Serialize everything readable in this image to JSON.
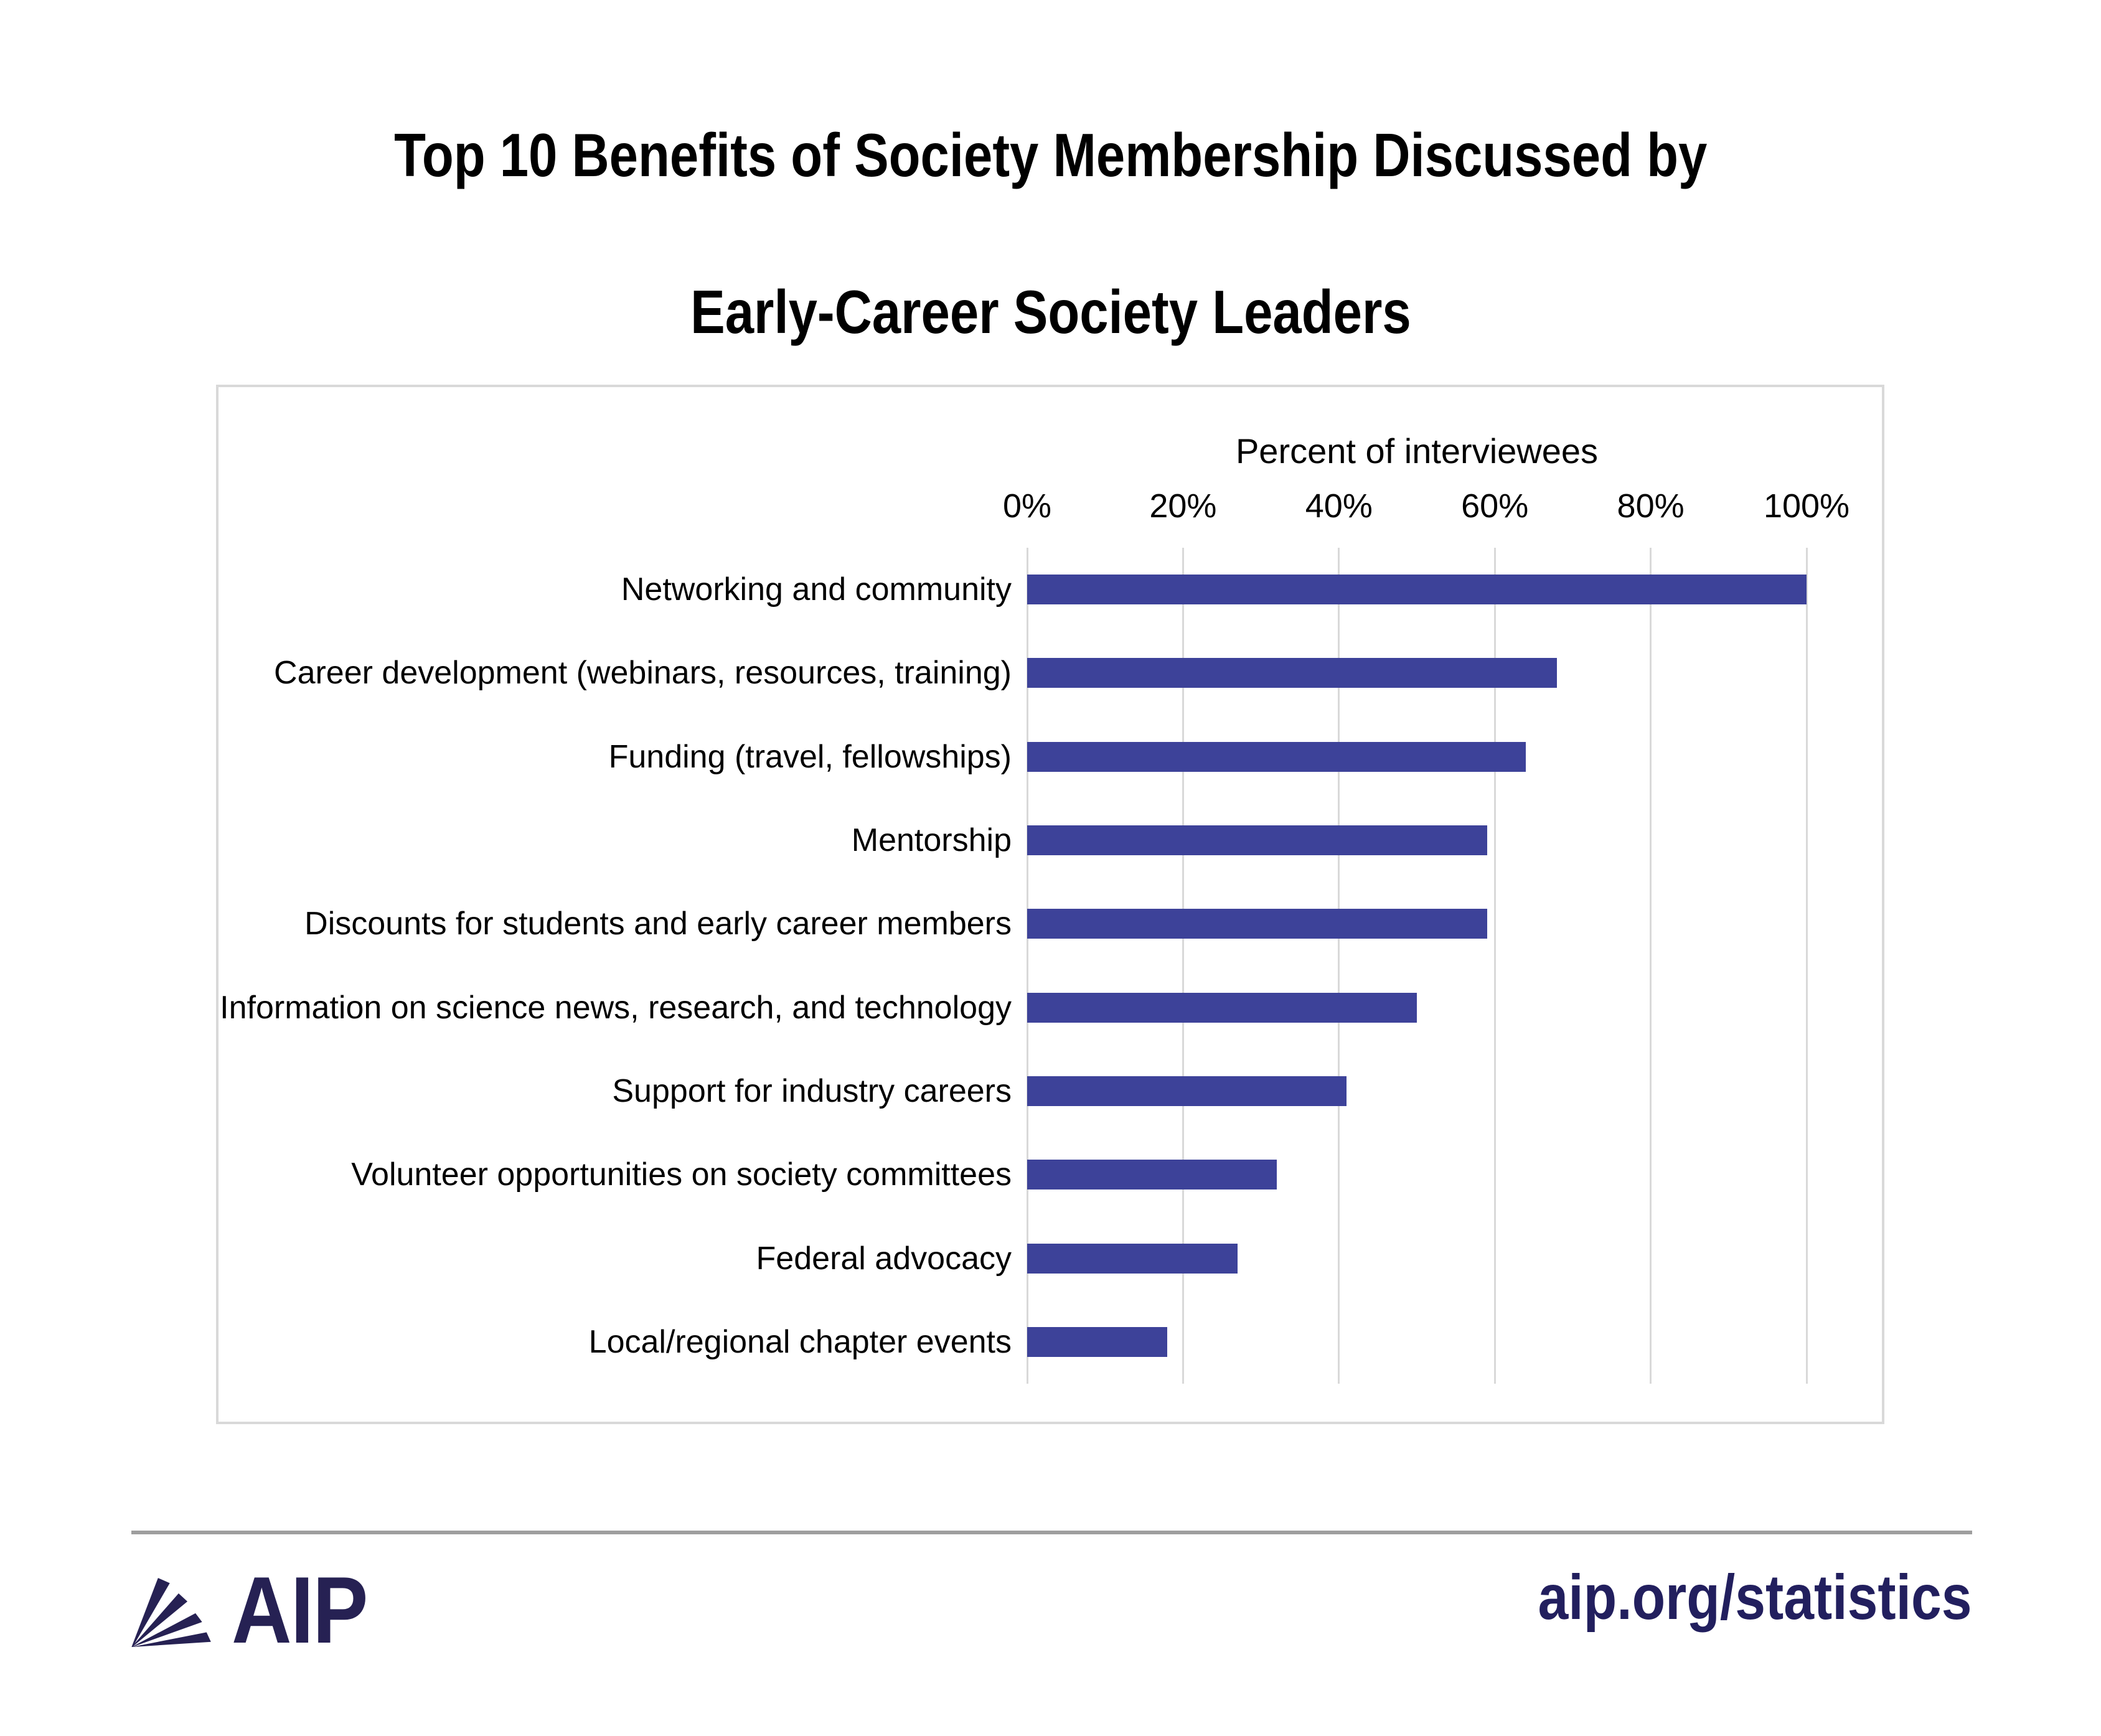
{
  "title": {
    "line1": "Top 10 Benefits of Society Membership Discussed by",
    "line2": "Early-Career Society Leaders"
  },
  "chart_data": {
    "type": "bar",
    "orientation": "horizontal",
    "axis_title": "Percent of interviewees",
    "categories": [
      "Networking and community",
      "Career development (webinars, resources, training)",
      "Funding (travel, fellowships)",
      "Mentorship",
      "Discounts for students and early career members",
      "Information on science news, research, and technology",
      "Support for industry careers",
      "Volunteer opportunities on society committees",
      "Federal advocacy",
      "Local/regional chapter events"
    ],
    "values": [
      100,
      68,
      64,
      59,
      59,
      50,
      41,
      32,
      27,
      18
    ],
    "unit": "%",
    "xlim": [
      0,
      100
    ],
    "tick_values": [
      0,
      20,
      40,
      60,
      80,
      100
    ],
    "tick_labels": [
      "0%",
      "20%",
      "40%",
      "60%",
      "80%",
      "100%"
    ],
    "grid": true,
    "legend": false,
    "bar_color": "#3D4299",
    "gridline_color": "#D9D9D9"
  },
  "footer": {
    "logo_text": "AIP",
    "url": "aip.org/statistics"
  },
  "colors": {
    "bar": "#3D4299",
    "gridline": "#D9D9D9",
    "panel_border": "#D9D9D9",
    "divider": "#9E9E9E",
    "logo_navy": "#262153",
    "url_navy": "#221F5E",
    "text": "#000000"
  }
}
